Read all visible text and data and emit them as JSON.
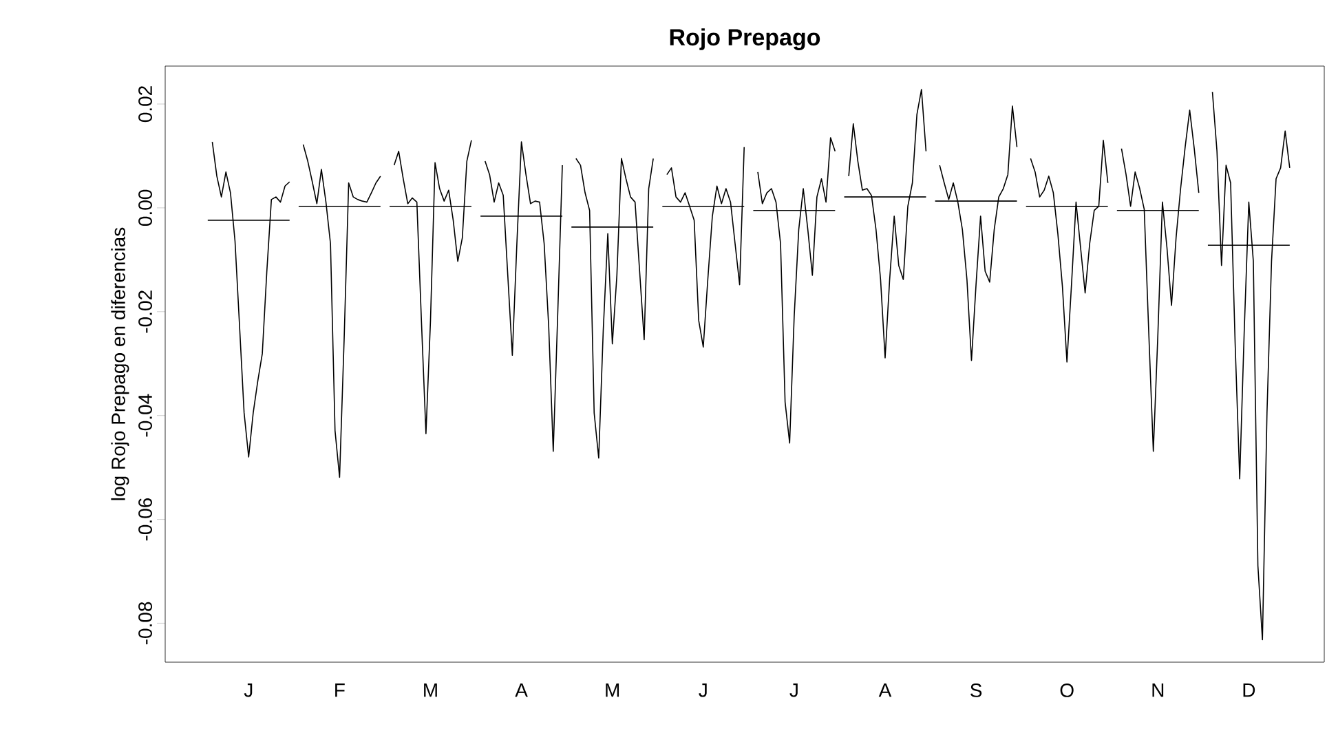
{
  "chart_data": {
    "type": "line",
    "title": "Rojo Prepago",
    "ylabel": "log Rojo Prepago en diferencias",
    "categories": [
      null,
      null,
      null,
      null,
      null,
      null,
      null,
      null,
      null,
      "J",
      null,
      null,
      null,
      null,
      null,
      null,
      null,
      null,
      null,
      null,
      null,
      null,
      null,
      null,
      null,
      null,
      null,
      null,
      null,
      "F",
      null,
      null,
      null,
      null,
      null,
      null,
      null,
      null,
      null,
      null,
      null,
      null,
      null,
      null,
      null,
      null,
      null,
      null,
      null,
      "M",
      null,
      null,
      null,
      null,
      null,
      null,
      null,
      null,
      null,
      null,
      null,
      null,
      null,
      null,
      null,
      null,
      null,
      null,
      null,
      "A",
      null,
      null,
      null,
      null,
      null,
      null,
      null,
      null,
      null,
      null,
      null,
      null,
      null,
      null,
      null,
      null,
      null,
      null,
      null,
      "M",
      null,
      null,
      null,
      null,
      null,
      null,
      null,
      null,
      null,
      null,
      null,
      null,
      null,
      null,
      null,
      null,
      null,
      null,
      null,
      "J",
      null,
      null,
      null,
      null,
      null,
      null,
      null,
      null,
      null,
      null,
      null,
      null,
      null,
      null,
      null,
      null,
      null,
      null,
      null,
      "J",
      null,
      null,
      null,
      null,
      null,
      null,
      null,
      null,
      null,
      null,
      null,
      null,
      null,
      null,
      null,
      null,
      null,
      null,
      null,
      "A",
      null,
      null,
      null,
      null,
      null,
      null,
      null,
      null,
      null,
      null,
      null,
      null,
      null,
      null,
      null,
      null,
      null,
      null,
      null,
      "S",
      null,
      null,
      null,
      null,
      null,
      null,
      null,
      null,
      null,
      null,
      null,
      null,
      null,
      null,
      null,
      null,
      null,
      null,
      null,
      "O",
      null,
      null,
      null,
      null,
      null,
      null,
      null,
      null,
      null,
      null,
      null,
      null,
      null,
      null,
      null,
      null,
      null,
      null,
      null,
      "N",
      null,
      null,
      null,
      null,
      null,
      null,
      null,
      null,
      null,
      null,
      null,
      null,
      null,
      null,
      null,
      null,
      null,
      null,
      null,
      "D",
      null,
      null,
      null,
      null,
      null,
      null,
      null,
      null,
      null,
      null
    ],
    "ylim": [
      -0.0875,
      0.0273
    ],
    "yticks": [
      -0.08,
      -0.06,
      -0.04,
      -0.02,
      {
        "value": 0,
        "label": "0.00"
      },
      0.02
    ],
    "series": [
      {
        "color": "#000000",
        "values": [
          null,
          0.0127,
          0.0061,
          0.0021,
          0.0069,
          0.0029,
          -0.0064,
          -0.0228,
          -0.0395,
          -0.048,
          -0.0395,
          -0.0334,
          -0.0281,
          -0.0122,
          0.0016,
          0.0021,
          0.0011,
          0.0042,
          0.005,
          null,
          null,
          0.0122,
          0.009,
          0.005,
          0.0008,
          0.0074,
          0.0011,
          -0.0069,
          -0.0429,
          -0.0519,
          -0.0254,
          0.0048,
          0.0021,
          0.0016,
          0.0013,
          0.0011,
          0.0029,
          0.0048,
          0.0061,
          null,
          null,
          0.0082,
          0.0109,
          0.0056,
          0.0008,
          0.0019,
          0.0011,
          -0.0217,
          -0.0435,
          -0.0217,
          0.0087,
          0.0037,
          0.0013,
          0.0034,
          -0.0024,
          -0.0103,
          -0.0058,
          0.009,
          0.013,
          null,
          null,
          0.009,
          0.0064,
          0.0011,
          0.0048,
          0.0024,
          -0.013,
          -0.0284,
          -0.0069,
          0.0127,
          0.0064,
          0.0008,
          0.0013,
          0.0011,
          -0.0069,
          -0.0228,
          -0.0469,
          -0.0201,
          0.0082,
          null,
          null,
          0.0095,
          0.0082,
          0.0029,
          -0.0005,
          -0.0395,
          -0.0482,
          -0.0236,
          -0.005,
          -0.0262,
          -0.013,
          0.0095,
          0.0056,
          0.0021,
          0.0011,
          -0.0122,
          -0.0254,
          0.0037,
          0.0095,
          null,
          null,
          0.0064,
          0.0077,
          0.0021,
          0.0011,
          0.0029,
          0.0003,
          -0.0024,
          -0.0217,
          -0.0268,
          -0.0138,
          -0.0016,
          0.0042,
          0.0008,
          0.0037,
          0.0011,
          -0.0069,
          -0.0148,
          0.0117,
          null,
          null,
          0.0069,
          0.0008,
          0.0029,
          0.0037,
          0.0011,
          -0.0069,
          -0.0374,
          -0.0453,
          -0.0209,
          -0.0042,
          0.0037,
          -0.0042,
          -0.013,
          0.0021,
          0.0056,
          0.0011,
          0.0135,
          0.0109,
          null,
          null,
          0.0061,
          0.0162,
          0.009,
          0.0034,
          0.0037,
          0.0024,
          -0.0042,
          -0.0138,
          -0.0289,
          -0.0138,
          -0.0016,
          -0.0111,
          -0.0138,
          0.0003,
          0.0048,
          0.018,
          0.0228,
          0.0109,
          null,
          null,
          0.0082,
          0.0048,
          0.0016,
          0.0048,
          0.0011,
          -0.0042,
          -0.0138,
          -0.0294,
          -0.0148,
          -0.0016,
          -0.0122,
          -0.0143,
          -0.0042,
          0.0021,
          0.0037,
          0.0064,
          0.0196,
          0.0117,
          null,
          null,
          0.0095,
          0.0069,
          0.0021,
          0.0034,
          0.0061,
          0.0029,
          -0.005,
          -0.0151,
          -0.0297,
          -0.0148,
          0.0011,
          -0.0077,
          -0.0164,
          -0.0069,
          -0.0005,
          0.0003,
          0.013,
          0.0048,
          null,
          null,
          0.0114,
          0.0064,
          0.0003,
          0.0069,
          0.0037,
          -0.0003,
          -0.0241,
          -0.0469,
          -0.0244,
          0.0011,
          -0.0077,
          -0.0188,
          -0.0058,
          0.0037,
          0.0117,
          0.0188,
          0.0114,
          0.0029,
          null,
          null,
          0.0223,
          0.0109,
          -0.0111,
          0.0082,
          0.0048,
          -0.0262,
          -0.0522,
          -0.0236,
          0.0011,
          -0.0103,
          -0.0689,
          -0.0832,
          -0.0395,
          -0.0103,
          0.0056,
          0.0077,
          0.0148,
          0.0077,
          null
        ]
      },
      {
        "color": "#000000",
        "values": [
          -0.0024,
          -0.0024,
          -0.0024,
          -0.0024,
          -0.0024,
          -0.0024,
          -0.0024,
          -0.0024,
          -0.0024,
          -0.0024,
          -0.0024,
          -0.0024,
          -0.0024,
          -0.0024,
          -0.0024,
          -0.0024,
          -0.0024,
          -0.0024,
          -0.0024,
          null,
          0.0003,
          0.0003,
          0.0003,
          0.0003,
          0.0003,
          0.0003,
          0.0003,
          0.0003,
          0.0003,
          0.0003,
          0.0003,
          0.0003,
          0.0003,
          0.0003,
          0.0003,
          0.0003,
          0.0003,
          0.0003,
          0.0003,
          null,
          0.0003,
          0.0003,
          0.0003,
          0.0003,
          0.0003,
          0.0003,
          0.0003,
          0.0003,
          0.0003,
          0.0003,
          0.0003,
          0.0003,
          0.0003,
          0.0003,
          0.0003,
          0.0003,
          0.0003,
          0.0003,
          0.0003,
          null,
          -0.0016,
          -0.0016,
          -0.0016,
          -0.0016,
          -0.0016,
          -0.0016,
          -0.0016,
          -0.0016,
          -0.0016,
          -0.0016,
          -0.0016,
          -0.0016,
          -0.0016,
          -0.0016,
          -0.0016,
          -0.0016,
          -0.0016,
          -0.0016,
          -0.0016,
          null,
          -0.0037,
          -0.0037,
          -0.0037,
          -0.0037,
          -0.0037,
          -0.0037,
          -0.0037,
          -0.0037,
          -0.0037,
          -0.0037,
          -0.0037,
          -0.0037,
          -0.0037,
          -0.0037,
          -0.0037,
          -0.0037,
          -0.0037,
          -0.0037,
          -0.0037,
          null,
          0.0003,
          0.0003,
          0.0003,
          0.0003,
          0.0003,
          0.0003,
          0.0003,
          0.0003,
          0.0003,
          0.0003,
          0.0003,
          0.0003,
          0.0003,
          0.0003,
          0.0003,
          0.0003,
          0.0003,
          0.0003,
          0.0003,
          null,
          -0.0005,
          -0.0005,
          -0.0005,
          -0.0005,
          -0.0005,
          -0.0005,
          -0.0005,
          -0.0005,
          -0.0005,
          -0.0005,
          -0.0005,
          -0.0005,
          -0.0005,
          -0.0005,
          -0.0005,
          -0.0005,
          -0.0005,
          -0.0005,
          -0.0005,
          null,
          0.0021,
          0.0021,
          0.0021,
          0.0021,
          0.0021,
          0.0021,
          0.0021,
          0.0021,
          0.0021,
          0.0021,
          0.0021,
          0.0021,
          0.0021,
          0.0021,
          0.0021,
          0.0021,
          0.0021,
          0.0021,
          0.0021,
          null,
          0.0013,
          0.0013,
          0.0013,
          0.0013,
          0.0013,
          0.0013,
          0.0013,
          0.0013,
          0.0013,
          0.0013,
          0.0013,
          0.0013,
          0.0013,
          0.0013,
          0.0013,
          0.0013,
          0.0013,
          0.0013,
          0.0013,
          null,
          0.0003,
          0.0003,
          0.0003,
          0.0003,
          0.0003,
          0.0003,
          0.0003,
          0.0003,
          0.0003,
          0.0003,
          0.0003,
          0.0003,
          0.0003,
          0.0003,
          0.0003,
          0.0003,
          0.0003,
          0.0003,
          0.0003,
          null,
          -0.0005,
          -0.0005,
          -0.0005,
          -0.0005,
          -0.0005,
          -0.0005,
          -0.0005,
          -0.0005,
          -0.0005,
          -0.0005,
          -0.0005,
          -0.0005,
          -0.0005,
          -0.0005,
          -0.0005,
          -0.0005,
          -0.0005,
          -0.0005,
          -0.0005,
          null,
          -0.0072,
          -0.0072,
          -0.0072,
          -0.0072,
          -0.0072,
          -0.0072,
          -0.0072,
          -0.0072,
          -0.0072,
          -0.0072,
          -0.0072,
          -0.0072,
          -0.0072,
          -0.0072,
          -0.0072,
          -0.0072,
          -0.0072,
          -0.0072,
          -0.0072,
          null
        ]
      }
    ]
  }
}
